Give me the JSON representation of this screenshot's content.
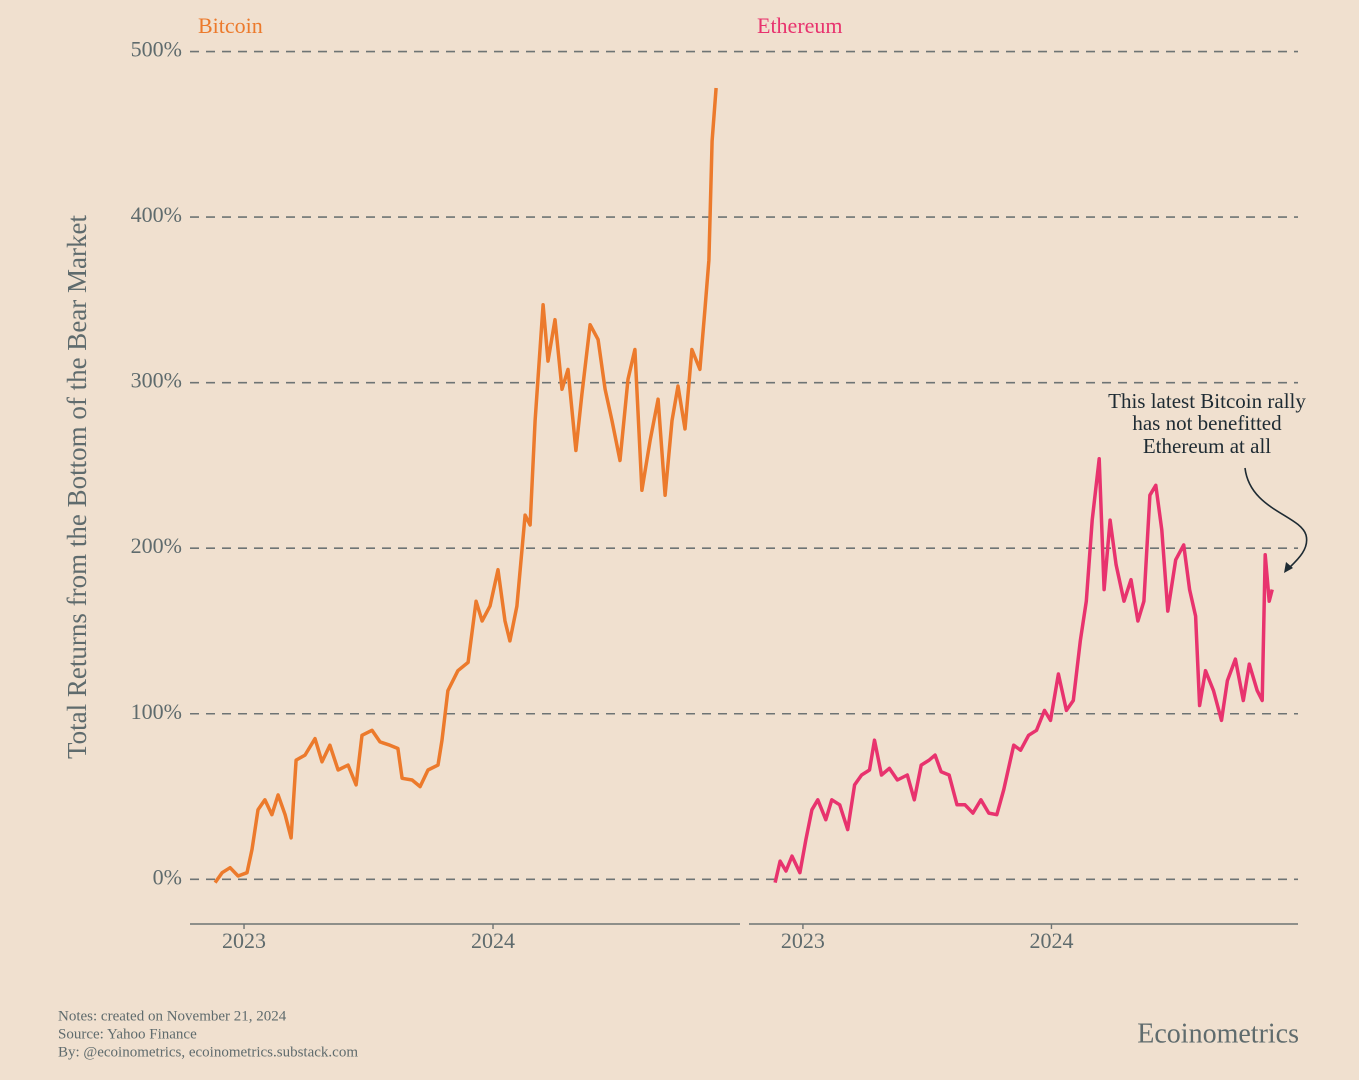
{
  "y_label": "Total Returns from the Bottom of the Bear Market",
  "grid": true,
  "notes": [
    "Notes: created on November 21, 2024",
    "Source: Yahoo Finance",
    "By: @ecoinometrics, ecoinometrics.substack.com"
  ],
  "brand": "Ecoinometrics",
  "chart_data": [
    {
      "type": "line",
      "title": "Bitcoin",
      "color": "#ec7a2c",
      "xlim": [
        2022.783,
        2024.992
      ],
      "xticks": [
        2023,
        2024
      ],
      "ylim": [
        -27,
        510
      ],
      "yticks": [
        {
          "value": 0,
          "label": "0%"
        },
        {
          "value": 100,
          "label": "100%"
        },
        {
          "value": 200,
          "label": "200%"
        },
        {
          "value": 300,
          "label": "300%"
        },
        {
          "value": 400,
          "label": "400%"
        },
        {
          "value": 500,
          "label": "500%"
        }
      ],
      "x": [
        2022.884,
        2022.912,
        2022.944,
        2022.976,
        2023.012,
        2023.032,
        2023.056,
        2023.084,
        2023.112,
        2023.137,
        2023.165,
        2023.189,
        2023.209,
        2023.245,
        2023.285,
        2023.313,
        2023.345,
        2023.378,
        2023.418,
        2023.45,
        2023.474,
        2023.514,
        2023.546,
        2023.586,
        2023.618,
        2023.635,
        2023.675,
        2023.707,
        2023.739,
        2023.779,
        2023.795,
        2023.819,
        2023.859,
        2023.9,
        2023.932,
        2023.956,
        2023.988,
        2024.02,
        2024.048,
        2024.068,
        2024.096,
        2024.129,
        2024.149,
        2024.169,
        2024.201,
        2024.221,
        2024.249,
        2024.277,
        2024.301,
        2024.333,
        2024.357,
        2024.39,
        2024.422,
        2024.45,
        2024.478,
        2024.51,
        2024.542,
        2024.57,
        2024.598,
        2024.631,
        2024.663,
        2024.691,
        2024.719,
        2024.743,
        2024.771,
        2024.799,
        2024.831,
        2024.851,
        2024.867,
        2024.88,
        2024.896
      ],
      "values": [
        -2,
        4,
        7,
        2,
        4,
        18,
        42,
        48,
        39,
        51,
        39,
        25,
        72,
        75,
        85,
        71,
        81,
        66,
        69,
        57,
        87,
        90,
        83,
        81,
        79,
        61,
        60,
        56,
        66,
        69,
        84,
        114,
        126,
        131,
        168,
        156,
        165,
        187,
        156,
        144,
        165,
        220,
        214,
        277,
        347,
        313,
        338,
        296,
        308,
        259,
        293,
        335,
        326,
        296,
        277,
        253,
        302,
        320,
        235,
        265,
        290,
        232,
        277,
        298,
        272,
        320,
        308,
        344,
        374,
        446,
        478
      ]
    },
    {
      "type": "line",
      "title": "Ethereum",
      "color": "#e8336e",
      "xlim": [
        2022.783,
        2024.992
      ],
      "xticks": [
        2023,
        2024
      ],
      "ylim": [
        -27,
        510
      ],
      "annotation": [
        "This latest Bitcoin rally",
        "has not benefitted",
        "Ethereum at all"
      ],
      "x": [
        2022.888,
        2022.908,
        2022.932,
        2022.956,
        2022.988,
        2023.012,
        2023.036,
        2023.06,
        2023.092,
        2023.116,
        2023.148,
        2023.18,
        2023.208,
        2023.236,
        2023.268,
        2023.288,
        2023.316,
        2023.348,
        2023.38,
        2023.42,
        2023.448,
        2023.476,
        2023.508,
        2023.532,
        2023.556,
        2023.588,
        2023.62,
        2023.652,
        2023.684,
        2023.716,
        2023.748,
        2023.78,
        2023.808,
        2023.848,
        2023.876,
        2023.908,
        2023.94,
        2023.972,
        2023.996,
        2024.028,
        2024.06,
        2024.088,
        2024.116,
        2024.14,
        2024.164,
        2024.192,
        2024.212,
        2024.236,
        2024.26,
        2024.292,
        2024.32,
        2024.348,
        2024.372,
        2024.396,
        2024.42,
        2024.444,
        2024.468,
        2024.5,
        2024.532,
        2024.556,
        2024.58,
        2024.596,
        2024.62,
        2024.652,
        2024.684,
        2024.708,
        2024.74,
        2024.772,
        2024.796,
        2024.828,
        2024.848,
        2024.86,
        2024.876,
        2024.888
      ],
      "values": [
        -2,
        11,
        5,
        14,
        4,
        24,
        42,
        48,
        36,
        48,
        45,
        30,
        57,
        63,
        66,
        84,
        63,
        67,
        60,
        63,
        48,
        69,
        72,
        75,
        65,
        63,
        45,
        45,
        40,
        48,
        40,
        39,
        54,
        81,
        78,
        87,
        90,
        102,
        96,
        124,
        102,
        108,
        144,
        168,
        217,
        254,
        175,
        217,
        190,
        168,
        181,
        156,
        168,
        232,
        238,
        211,
        162,
        193,
        202,
        175,
        159,
        105,
        126,
        114,
        96,
        120,
        133,
        108,
        130,
        114,
        108,
        196,
        168,
        175
      ]
    }
  ]
}
